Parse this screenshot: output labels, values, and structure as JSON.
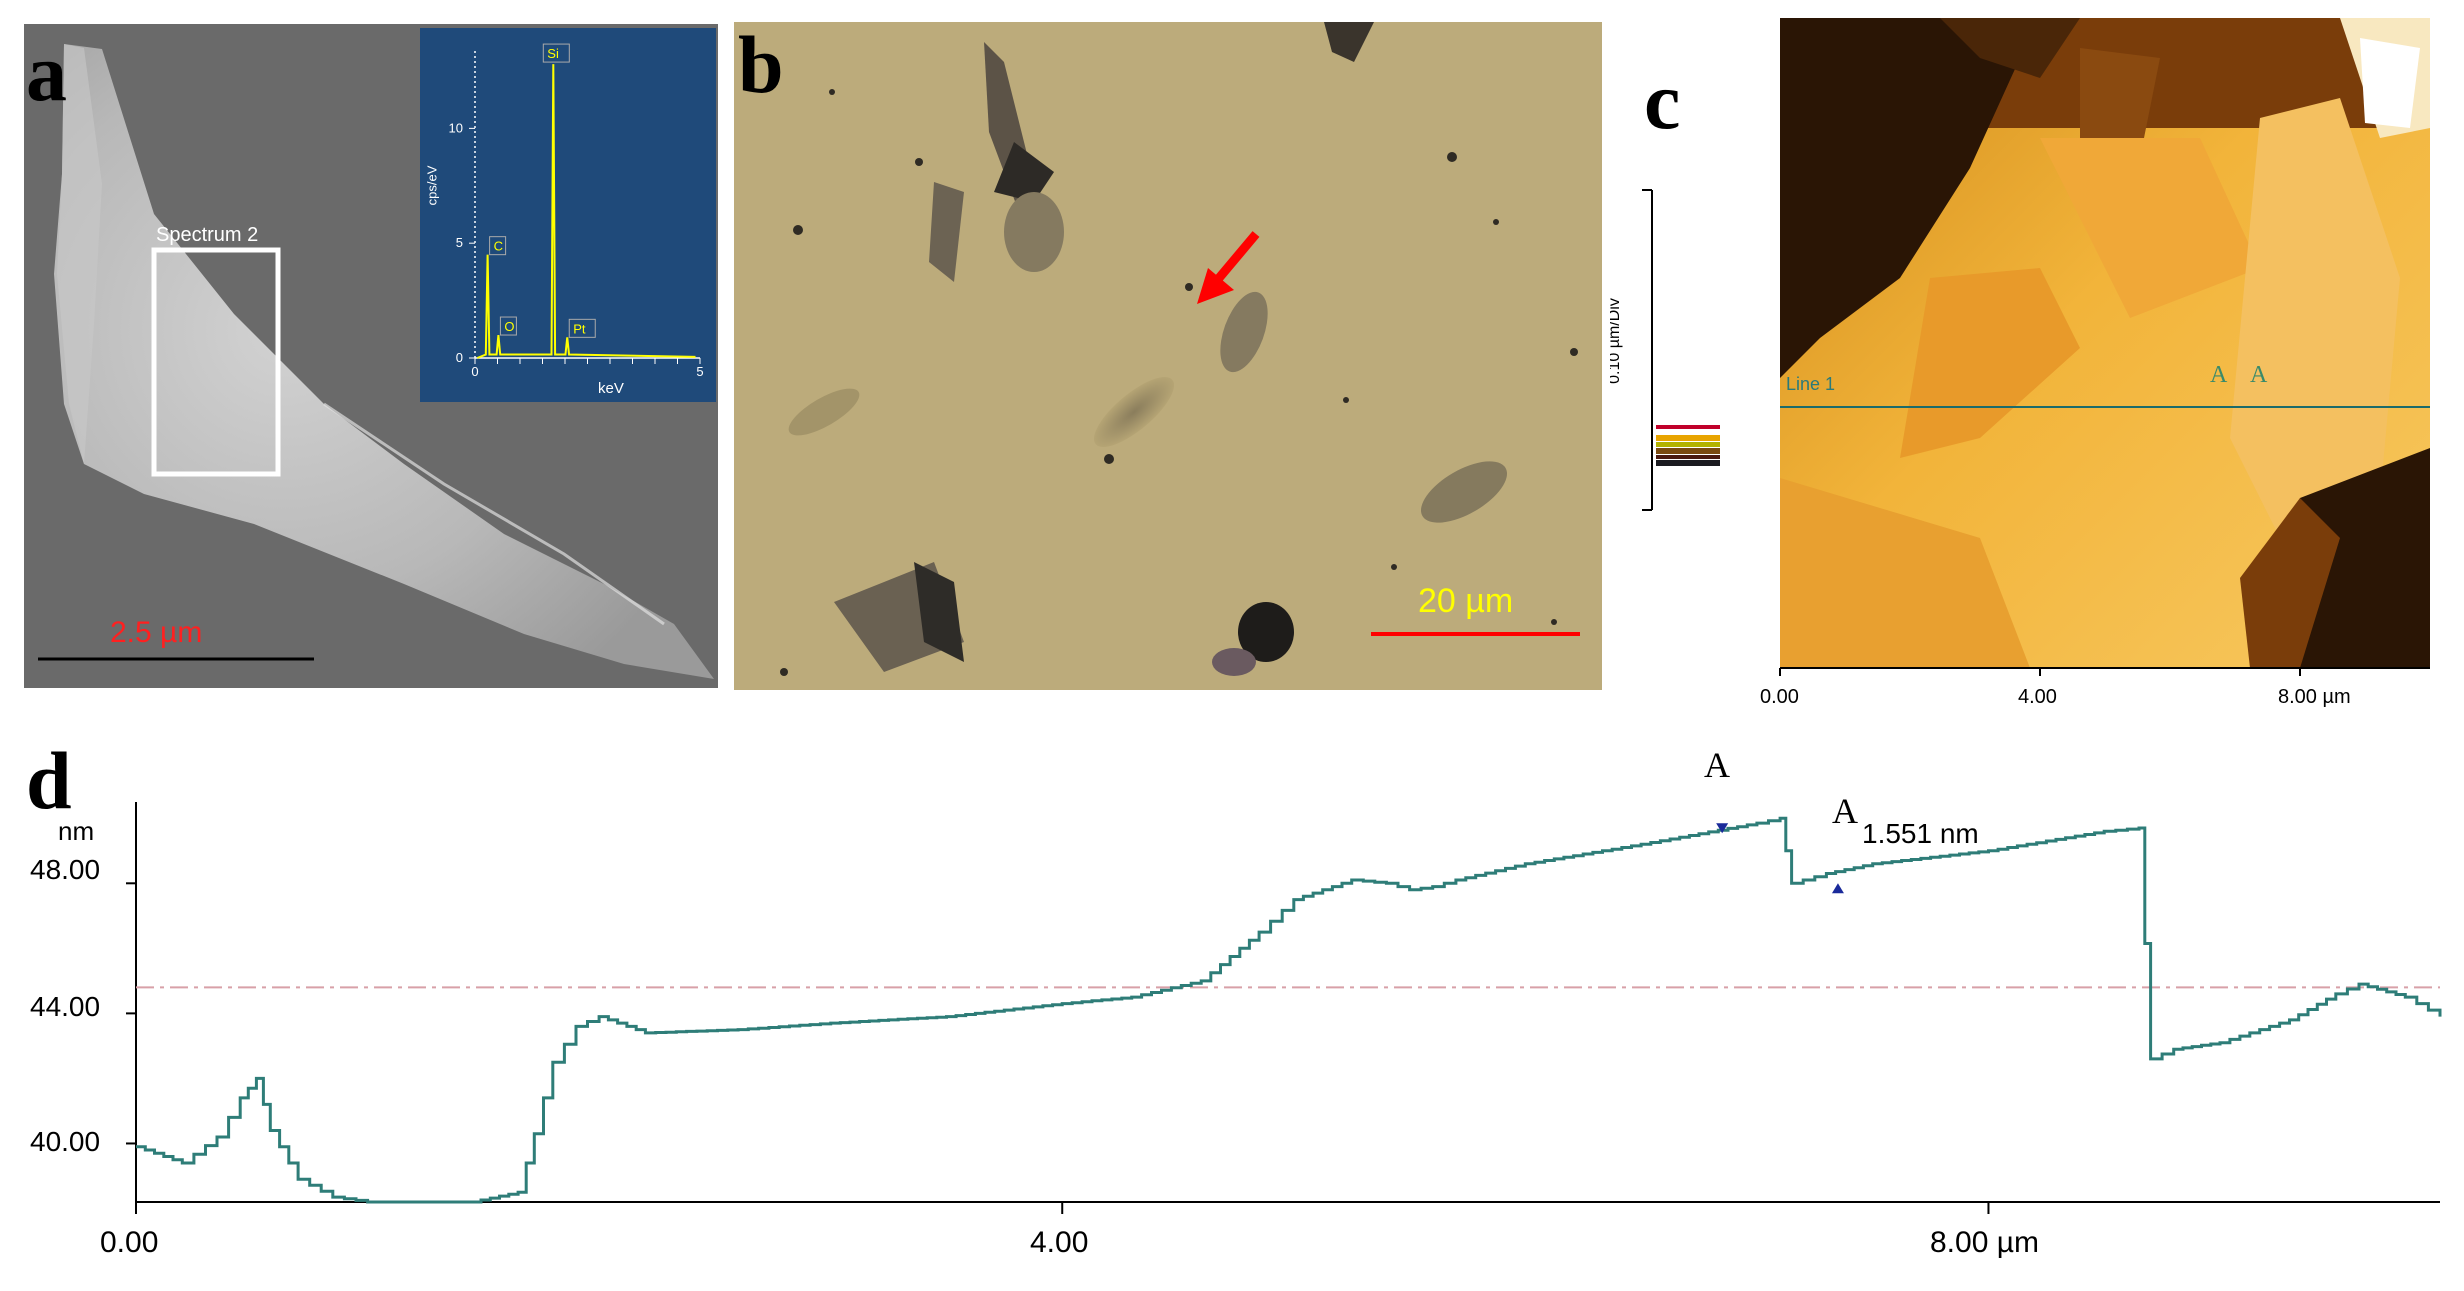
{
  "labels": {
    "a": "a",
    "b": "b",
    "c": "c",
    "d": "d"
  },
  "panel_a": {
    "scale_bar": "2.5 µm",
    "roi_label": "Spectrum 2",
    "inset": {
      "y_axis_label": "cps/eV",
      "y_ticks": [
        "0",
        "5",
        "10"
      ],
      "x_ticks": [
        "0",
        "5"
      ],
      "x_axis_label": "keV",
      "peaks": [
        {
          "label": "C",
          "kev": 0.28,
          "cps": 4.5
        },
        {
          "label": "O",
          "kev": 0.52,
          "cps": 1.0
        },
        {
          "label": "Si",
          "kev": 1.74,
          "cps": 12.8
        },
        {
          "label": "Pt",
          "kev": 2.05,
          "cps": 0.9
        }
      ],
      "colors": {
        "background": "#1f4a7a",
        "trace": "#ffff00"
      }
    }
  },
  "panel_b": {
    "scale_bar": "20 µm",
    "colors": {
      "scale_text": "#ffff00",
      "scale_bar": "#ff0000",
      "arrow": "#ff0000"
    }
  },
  "panel_c": {
    "colorbar_label": "0.10 µm/Div",
    "line_label": "Line 1",
    "markers": [
      "A",
      "A"
    ],
    "x_ticks": [
      "0.00",
      "4.00",
      "8.00 µm"
    ]
  },
  "panel_d": {
    "y_unit": "nm",
    "y_ticks": [
      "40.00",
      "44.00",
      "48.00"
    ],
    "x_ticks": [
      "0.00",
      "4.00",
      "8.00 µm"
    ],
    "marker_a1": "A",
    "marker_a2": "A",
    "step_value": "1.551 nm",
    "colors": {
      "profile": "#2e7d78",
      "reference": "#d8a0a8"
    }
  },
  "chart_data": {
    "type": "line",
    "title": "",
    "xlabel": "",
    "ylabel": "nm",
    "xlim": [
      0,
      9.95
    ],
    "ylim": [
      38.2,
      50.5
    ],
    "reference_line": 44.8,
    "x": [
      0,
      0.2,
      0.35,
      0.45,
      0.52,
      0.58,
      0.7,
      0.85,
      1.0,
      1.2,
      1.45,
      1.65,
      1.72,
      1.8,
      1.9,
      2.0,
      2.2,
      2.6,
      3.0,
      3.5,
      4.0,
      4.3,
      4.6,
      4.85,
      5.0,
      5.25,
      5.4,
      5.5,
      5.6,
      5.7,
      6.0,
      6.5,
      7.0,
      7.1,
      7.15,
      7.3,
      7.5,
      8.0,
      8.5,
      8.65,
      8.7,
      8.8,
      9.0,
      9.3,
      9.5,
      9.6,
      9.8,
      9.95
    ],
    "y": [
      39.9,
      39.4,
      40.2,
      41.4,
      42.0,
      40.4,
      38.9,
      38.35,
      38.2,
      38.2,
      38.2,
      38.5,
      40.3,
      42.5,
      43.6,
      43.9,
      43.4,
      43.5,
      43.7,
      43.9,
      44.3,
      44.5,
      45.0,
      46.5,
      47.5,
      48.1,
      48.0,
      47.8,
      47.9,
      48.1,
      48.6,
      49.2,
      49.85,
      50.0,
      48.0,
      48.3,
      48.6,
      49.0,
      49.6,
      49.7,
      42.6,
      42.9,
      43.1,
      43.8,
      44.6,
      44.9,
      44.5,
      43.9
    ]
  }
}
